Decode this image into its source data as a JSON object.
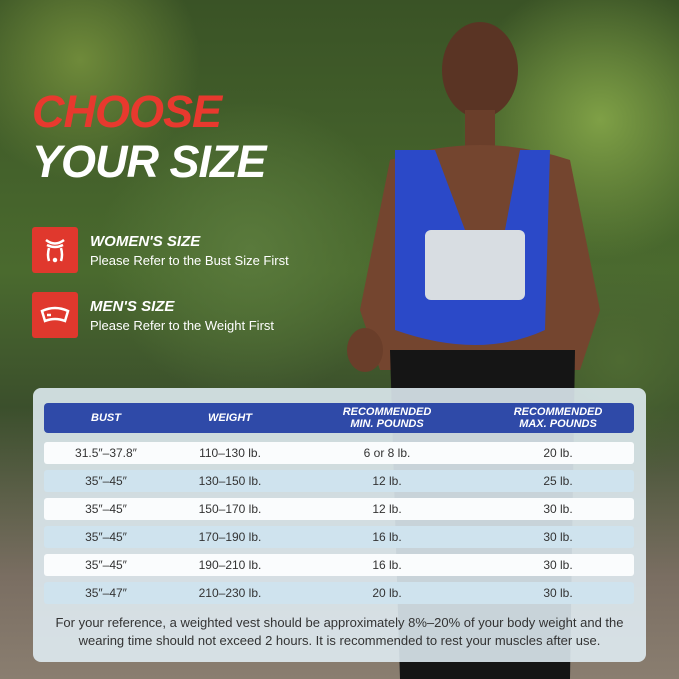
{
  "title": {
    "line1": "CHOOSE",
    "line2": "YOUR SIZE"
  },
  "colors": {
    "accent_red": "#e0382d",
    "header_blue": "#2f4aa8",
    "vest_blue": "#2b49c8"
  },
  "sizes": [
    {
      "icon": "women-torso-icon",
      "label": "WOMEN'S SIZE",
      "sub": "Please Refer to the Bust Size First"
    },
    {
      "icon": "men-band-icon",
      "label": "MEN'S SIZE",
      "sub": "Please Refer to the Weight First"
    }
  ],
  "table": {
    "headers": [
      "BUST",
      "WEIGHT",
      "RECOMMENDED MIN. POUNDS",
      "RECOMMENDED MAX. POUNDS"
    ],
    "rows": [
      [
        "31.5″–37.8″",
        "110–130 lb.",
        "6 or 8 lb.",
        "20 lb."
      ],
      [
        "35″–45″",
        "130–150 lb.",
        "12 lb.",
        "25 lb."
      ],
      [
        "35″–45″",
        "150–170 lb.",
        "12 lb.",
        "30 lb."
      ],
      [
        "35″–45″",
        "170–190 lb.",
        "16 lb.",
        "30 lb."
      ],
      [
        "35″–45″",
        "190–210 lb.",
        "16 lb.",
        "30 lb."
      ],
      [
        "35″–47″",
        "210–230 lb.",
        "20 lb.",
        "30 lb."
      ]
    ],
    "note": "For your reference, a weighted vest should be approximately 8%–20% of your body weight and the wearing time should not exceed 2 hours. It is recommended to rest your muscles after use."
  }
}
